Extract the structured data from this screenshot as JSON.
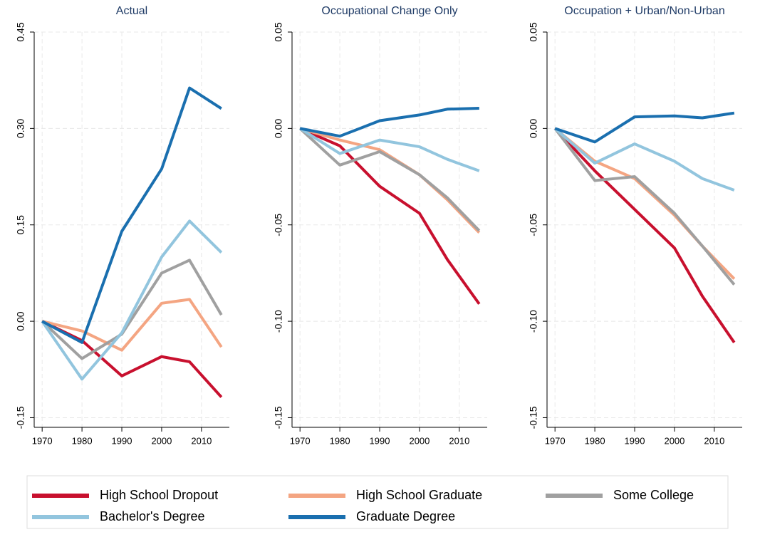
{
  "chart_data": [
    {
      "type": "line",
      "title": "Actual",
      "x": [
        1970,
        1980,
        1990,
        2000,
        2007,
        2015
      ],
      "xlim": [
        1968,
        2017
      ],
      "xticks": [
        1970,
        1980,
        1990,
        2000,
        2010
      ],
      "ylim": [
        -0.165,
        0.45
      ],
      "yticks": [
        {
          "value": -0.15,
          "label": "-0.15"
        },
        {
          "value": 0,
          "label": "0.00"
        },
        {
          "value": 0.15,
          "label": "0.15"
        },
        {
          "value": 0.3,
          "label": "0.30"
        },
        {
          "value": 0.45,
          "label": "0.45"
        }
      ],
      "grid": true,
      "series": [
        {
          "name": "High School Dropout",
          "color": "#c8102e",
          "values": [
            0,
            -0.03,
            -0.085,
            -0.055,
            -0.063,
            -0.118
          ]
        },
        {
          "name": "High School Graduate",
          "color": "#f4a582",
          "values": [
            0,
            -0.015,
            -0.045,
            0.028,
            0.034,
            -0.04
          ]
        },
        {
          "name": "Some College",
          "color": "#a0a0a0",
          "values": [
            0,
            -0.058,
            -0.02,
            0.075,
            0.095,
            0.01
          ]
        },
        {
          "name": "Bachelor's Degree",
          "color": "#92c5de",
          "values": [
            0,
            -0.09,
            -0.018,
            0.1,
            0.156,
            0.107
          ]
        },
        {
          "name": "Graduate Degree",
          "color": "#1a6faf",
          "values": [
            0,
            -0.033,
            0.14,
            0.237,
            0.363,
            0.331
          ]
        }
      ]
    },
    {
      "type": "line",
      "title": "Occupational Change Only",
      "x": [
        1970,
        1980,
        1990,
        2000,
        2007,
        2015
      ],
      "xlim": [
        1968,
        2017
      ],
      "xticks": [
        1970,
        1980,
        1990,
        2000,
        2010
      ],
      "ylim": [
        -0.155,
        0.05
      ],
      "yticks": [
        {
          "value": -0.15,
          "label": "-0.15"
        },
        {
          "value": -0.1,
          "label": "-0.10"
        },
        {
          "value": -0.05,
          "label": "-0.05"
        },
        {
          "value": 0,
          "label": "0.00"
        },
        {
          "value": 0.05,
          "label": "0.05"
        }
      ],
      "grid": true,
      "series": [
        {
          "color": "#c8102e",
          "values": [
            0,
            -0.009,
            -0.03,
            -0.044,
            -0.068,
            -0.091
          ]
        },
        {
          "color": "#f4a582",
          "values": [
            0,
            -0.006,
            -0.011,
            -0.024,
            -0.037,
            -0.054
          ]
        },
        {
          "color": "#a0a0a0",
          "values": [
            0,
            -0.019,
            -0.012,
            -0.024,
            -0.036,
            -0.053
          ]
        },
        {
          "color": "#92c5de",
          "values": [
            0,
            -0.013,
            -0.006,
            -0.0095,
            -0.016,
            -0.022
          ]
        },
        {
          "color": "#1a6faf",
          "values": [
            0,
            -0.004,
            0.004,
            0.007,
            0.01,
            0.0105
          ]
        }
      ]
    },
    {
      "type": "line",
      "title": "Occupation + Urban/Non-Urban",
      "x": [
        1970,
        1980,
        1990,
        2000,
        2007,
        2015
      ],
      "xlim": [
        1968,
        2017
      ],
      "xticks": [
        1970,
        1980,
        1990,
        2000,
        2010
      ],
      "ylim": [
        -0.155,
        0.05
      ],
      "yticks": [
        {
          "value": -0.15,
          "label": "-0.15"
        },
        {
          "value": -0.1,
          "label": "-0.10"
        },
        {
          "value": -0.05,
          "label": "-0.05"
        },
        {
          "value": 0,
          "label": "0.00"
        },
        {
          "value": 0.05,
          "label": "0.05"
        }
      ],
      "grid": true,
      "series": [
        {
          "color": "#c8102e",
          "values": [
            0,
            -0.022,
            -0.042,
            -0.062,
            -0.087,
            -0.111
          ]
        },
        {
          "color": "#f4a582",
          "values": [
            0,
            -0.017,
            -0.026,
            -0.045,
            -0.061,
            -0.078
          ]
        },
        {
          "color": "#a0a0a0",
          "values": [
            0,
            -0.027,
            -0.025,
            -0.044,
            -0.061,
            -0.081
          ]
        },
        {
          "color": "#92c5de",
          "values": [
            0,
            -0.018,
            -0.008,
            -0.017,
            -0.026,
            -0.032
          ]
        },
        {
          "color": "#1a6faf",
          "values": [
            0,
            -0.007,
            0.006,
            0.0065,
            0.0055,
            0.008
          ]
        }
      ]
    }
  ]
}
